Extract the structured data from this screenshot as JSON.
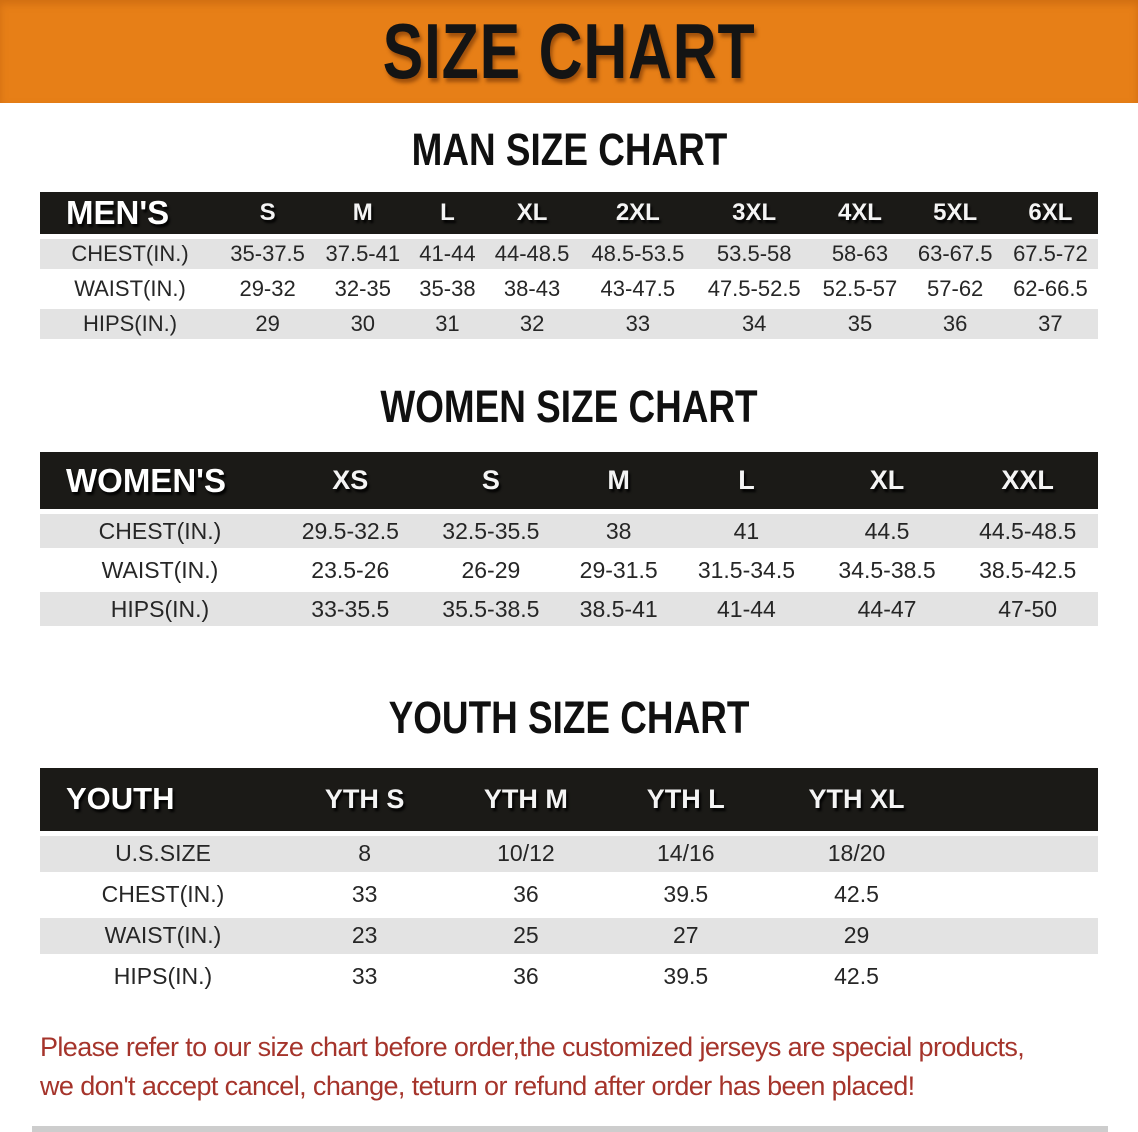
{
  "banner": {
    "title": "SIZE CHART"
  },
  "colors": {
    "banner_bg": "#E77F17",
    "header_bar_bg": "#1B1A17",
    "alt_row_bg": "#E3E3E3",
    "footer_text": "#A5342B"
  },
  "sections": [
    {
      "id": "men",
      "heading": "MAN SIZE CHART",
      "corner_label": "MEN'S",
      "columns": [
        "S",
        "M",
        "L",
        "XL",
        "2XL",
        "3XL",
        "4XL",
        "5XL",
        "6XL"
      ],
      "rows": [
        {
          "label": "CHEST(IN.)",
          "values": [
            "35-37.5",
            "37.5-41",
            "41-44",
            "44-48.5",
            "48.5-53.5",
            "53.5-58",
            "58-63",
            "63-67.5",
            "67.5-72"
          ]
        },
        {
          "label": "WAIST(IN.)",
          "values": [
            "29-32",
            "32-35",
            "35-38",
            "38-43",
            "43-47.5",
            "47.5-52.5",
            "52.5-57",
            "57-62",
            "62-66.5"
          ]
        },
        {
          "label": "HIPS(IN.)",
          "values": [
            "29",
            "30",
            "31",
            "32",
            "33",
            "34",
            "35",
            "36",
            "37"
          ]
        }
      ]
    },
    {
      "id": "women",
      "heading": "WOMEN SIZE CHART",
      "corner_label": "WOMEN'S",
      "columns": [
        "XS",
        "S",
        "M",
        "L",
        "XL",
        "XXL"
      ],
      "rows": [
        {
          "label": "CHEST(IN.)",
          "values": [
            "29.5-32.5",
            "32.5-35.5",
            "38",
            "41",
            "44.5",
            "44.5-48.5"
          ]
        },
        {
          "label": "WAIST(IN.)",
          "values": [
            "23.5-26",
            "26-29",
            "29-31.5",
            "31.5-34.5",
            "34.5-38.5",
            "38.5-42.5"
          ]
        },
        {
          "label": "HIPS(IN.)",
          "values": [
            "33-35.5",
            "35.5-38.5",
            "38.5-41",
            "41-44",
            "44-47",
            "47-50"
          ]
        }
      ]
    },
    {
      "id": "youth",
      "heading": "YOUTH SIZE CHART",
      "corner_label": "YOUTH",
      "columns": [
        "YTH S",
        "YTH M",
        "YTH L",
        "YTH XL"
      ],
      "rows": [
        {
          "label": "U.S.SIZE",
          "values": [
            "8",
            "10/12",
            "14/16",
            "18/20"
          ]
        },
        {
          "label": "CHEST(IN.)",
          "values": [
            "33",
            "36",
            "39.5",
            "42.5"
          ]
        },
        {
          "label": "WAIST(IN.)",
          "values": [
            "23",
            "25",
            "27",
            "29"
          ]
        },
        {
          "label": "HIPS(IN.)",
          "values": [
            "33",
            "36",
            "39.5",
            "42.5"
          ]
        }
      ]
    }
  ],
  "footer": {
    "line1": "Please refer to our size chart before order,the customized jerseys are special products,",
    "line2": "we don't accept cancel, change, teturn or refund after order has been placed!"
  }
}
